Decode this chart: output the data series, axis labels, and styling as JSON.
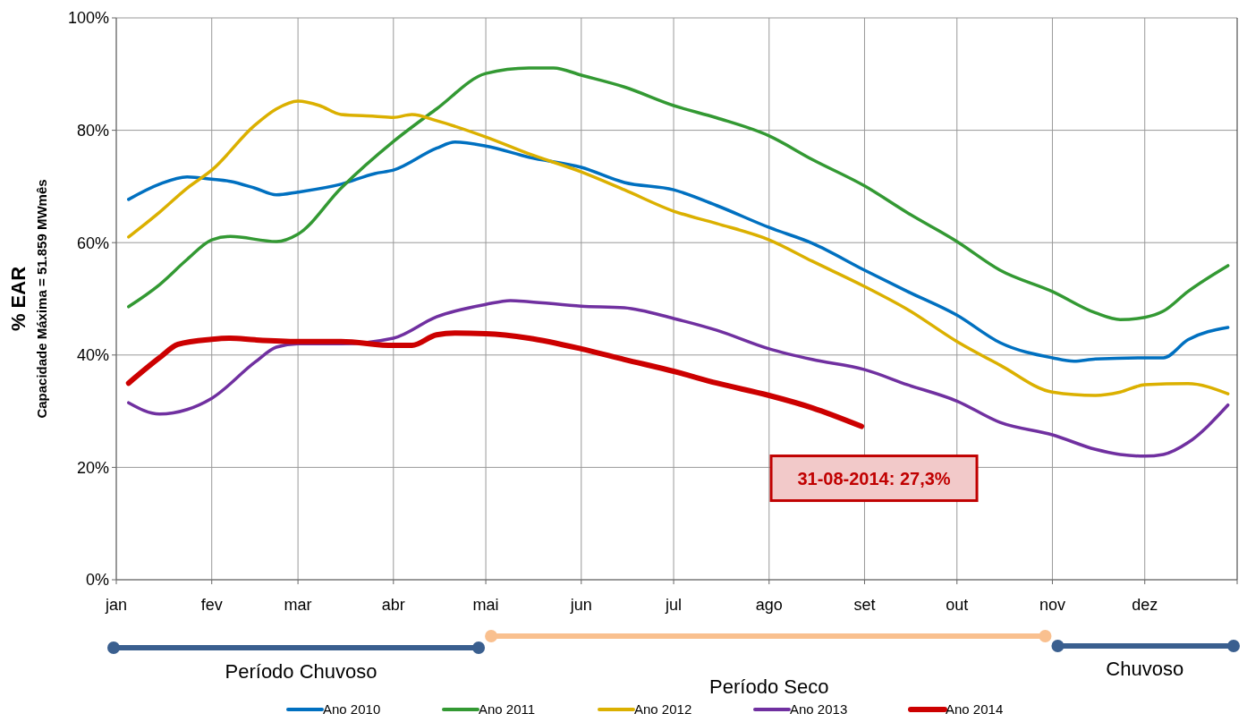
{
  "chart_data": {
    "type": "line",
    "ylabel": "% EAR",
    "xlim": [
      "--01-01",
      "--12-31"
    ],
    "ylim": [
      0,
      100
    ],
    "xticks": [
      {
        "value": "--01-01",
        "label": "jan"
      },
      {
        "value": "--02-01",
        "label": "fev"
      },
      {
        "value": "--03-01",
        "label": "mar"
      },
      {
        "value": "--04-01",
        "label": "abr"
      },
      {
        "value": "--05-01",
        "label": "mai"
      },
      {
        "value": "--06-01",
        "label": "jun"
      },
      {
        "value": "--07-01",
        "label": "jul"
      },
      {
        "value": "--08-01",
        "label": "ago"
      },
      {
        "value": "--09-01",
        "label": "set"
      },
      {
        "value": "--10-01",
        "label": "out"
      },
      {
        "value": "--11-01",
        "label": "nov"
      },
      {
        "value": "--12-01",
        "label": "dez"
      }
    ],
    "yticks": [
      {
        "value": 0,
        "label": "0%"
      },
      {
        "value": 20,
        "label": "20%"
      },
      {
        "value": 40,
        "label": "40%"
      },
      {
        "value": 60,
        "label": "60%"
      },
      {
        "value": 80,
        "label": "80%"
      },
      {
        "value": 100,
        "label": "100%"
      }
    ],
    "grid": true,
    "legend": "bottom",
    "marker": "none",
    "line_style": "solid",
    "series": [
      {
        "name": "Ano 2010",
        "color": "#0070c0",
        "x": [
          "--01-05",
          "--01-15",
          "--01-24",
          "--02-01",
          "--02-07",
          "--02-15",
          "--02-22",
          "--03-01",
          "--03-15",
          "--03-26",
          "--04-01",
          "--04-15",
          "--04-21",
          "--05-01",
          "--05-15",
          "--06-01",
          "--06-15",
          "--07-01",
          "--07-15",
          "--08-01",
          "--08-15",
          "--09-01",
          "--09-15",
          "--10-01",
          "--10-15",
          "--11-01",
          "--11-08",
          "--11-15",
          "--12-01",
          "--12-07",
          "--12-15",
          "--12-28"
        ],
        "values": [
          67.7,
          70.4,
          71.7,
          71.3,
          70.9,
          69.7,
          68.5,
          69.0,
          70.4,
          72.3,
          72.9,
          76.8,
          77.9,
          77.2,
          75.2,
          73.4,
          70.7,
          69.4,
          66.6,
          62.7,
          59.9,
          55.1,
          51.3,
          47.1,
          42.2,
          39.5,
          38.9,
          39.3,
          39.5,
          39.5,
          42.7,
          44.9
        ]
      },
      {
        "name": "Ano 2011",
        "color": "#339933",
        "x": [
          "--01-05",
          "--01-15",
          "--01-24",
          "--02-01",
          "--02-07",
          "--02-22",
          "--03-01",
          "--03-15",
          "--04-01",
          "--04-15",
          "--05-01",
          "--05-15",
          "--05-23",
          "--06-01",
          "--06-15",
          "--07-01",
          "--07-15",
          "--08-01",
          "--08-15",
          "--09-01",
          "--09-15",
          "--10-01",
          "--10-15",
          "--11-01",
          "--11-15",
          "--11-23",
          "--12-01",
          "--12-07",
          "--12-15",
          "--12-28"
        ],
        "values": [
          48.6,
          52.5,
          57.0,
          60.5,
          61.1,
          60.2,
          61.5,
          69.7,
          78.0,
          83.8,
          90.1,
          91.1,
          91.1,
          89.8,
          87.7,
          84.4,
          82.2,
          79.0,
          74.8,
          70.1,
          65.3,
          60.2,
          55.1,
          51.3,
          47.5,
          46.3,
          46.7,
          47.8,
          51.3,
          55.9
        ]
      },
      {
        "name": "Ano 2012",
        "color": "#dbb000",
        "x": [
          "--01-05",
          "--01-15",
          "--01-24",
          "--02-01",
          "--02-15",
          "--02-22",
          "--03-01",
          "--03-08",
          "--03-15",
          "--03-26",
          "--04-01",
          "--04-07",
          "--04-15",
          "--05-01",
          "--05-15",
          "--06-01",
          "--06-15",
          "--07-01",
          "--07-15",
          "--08-01",
          "--08-15",
          "--09-01",
          "--09-15",
          "--10-01",
          "--10-15",
          "--11-01",
          "--11-15",
          "--11-23",
          "--12-01",
          "--12-15",
          "--12-28"
        ],
        "values": [
          61.0,
          65.4,
          69.7,
          72.9,
          80.9,
          83.8,
          85.2,
          84.4,
          82.8,
          82.5,
          82.3,
          82.8,
          81.7,
          78.8,
          75.8,
          72.6,
          69.4,
          65.6,
          63.4,
          60.5,
          56.7,
          52.2,
          48.1,
          42.4,
          38.2,
          33.4,
          32.8,
          33.4,
          34.7,
          34.9,
          33.1
        ]
      },
      {
        "name": "Ano 2013",
        "color": "#7030a0",
        "x": [
          "--01-05",
          "--01-15",
          "--01-24",
          "--02-01",
          "--02-15",
          "--02-22",
          "--03-01",
          "--03-15",
          "--04-01",
          "--04-15",
          "--05-01",
          "--05-09",
          "--05-15",
          "--06-01",
          "--06-15",
          "--07-01",
          "--07-15",
          "--08-01",
          "--08-15",
          "--09-01",
          "--09-15",
          "--10-01",
          "--10-15",
          "--11-01",
          "--11-15",
          "--11-23",
          "--12-01",
          "--12-07",
          "--12-15",
          "--12-28"
        ],
        "values": [
          31.5,
          29.5,
          30.3,
          32.3,
          38.7,
          41.4,
          42.0,
          42.0,
          43.0,
          46.8,
          49.0,
          49.7,
          49.5,
          48.7,
          48.4,
          46.5,
          44.4,
          41.1,
          39.2,
          37.4,
          34.7,
          31.8,
          28.0,
          25.8,
          23.2,
          22.3,
          22.0,
          22.3,
          24.4,
          31.1
        ]
      },
      {
        "name": "Ano 2014",
        "color": "#cc0000",
        "x": [
          "--01-05",
          "--01-15",
          "--01-21",
          "--02-01",
          "--02-07",
          "--02-15",
          "--03-01",
          "--03-15",
          "--04-01",
          "--04-07",
          "--04-15",
          "--04-21",
          "--05-01",
          "--05-15",
          "--06-01",
          "--06-15",
          "--07-01",
          "--07-15",
          "--08-01",
          "--08-15",
          "--08-31"
        ],
        "values": [
          35.0,
          39.5,
          41.9,
          42.8,
          43.0,
          42.7,
          42.4,
          42.4,
          41.7,
          41.7,
          43.6,
          43.9,
          43.8,
          43.0,
          41.1,
          39.2,
          37.1,
          35.0,
          32.8,
          30.6,
          27.3
        ]
      }
    ],
    "annotations": [
      "Capacidade Máxima = 51.859 MWmês",
      "Período Chuvoso",
      "Período Seco",
      "Chuvoso",
      {
        "text": "31-08-2014: 27,3%",
        "x": "--08-31",
        "y": 27.3
      }
    ]
  }
}
